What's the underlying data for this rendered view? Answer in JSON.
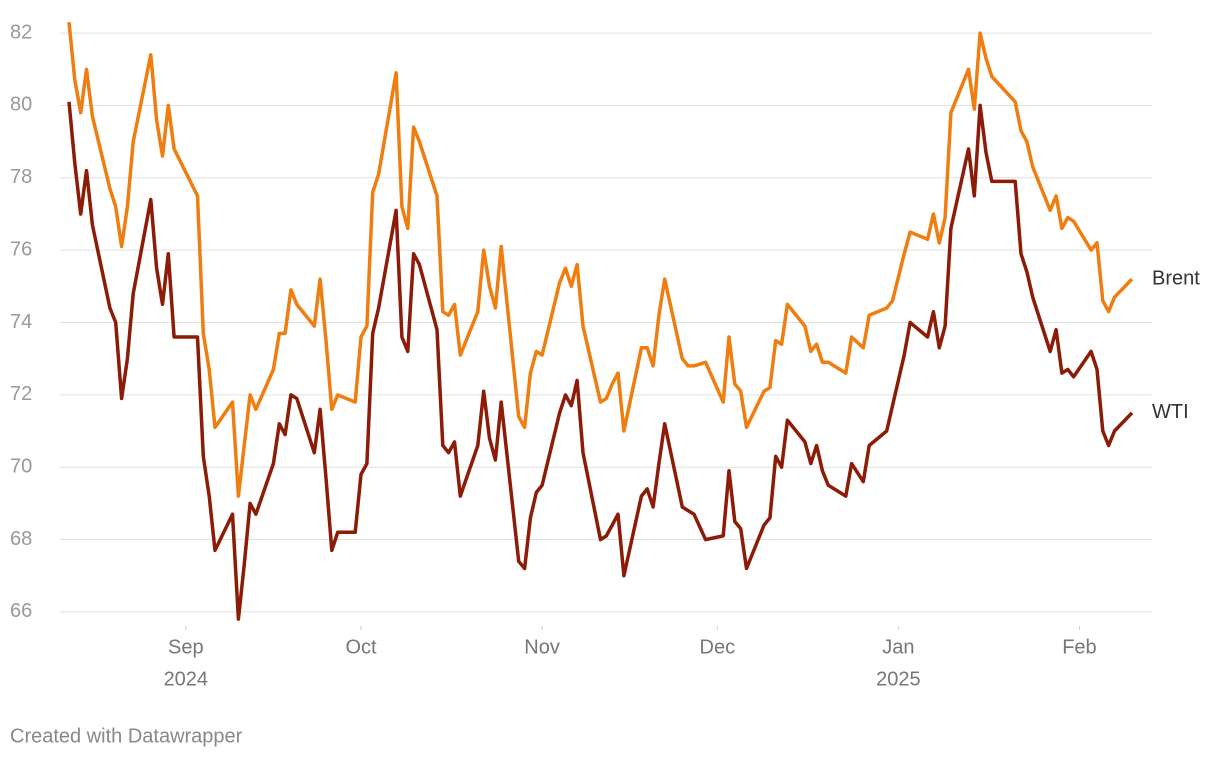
{
  "chart_data": {
    "type": "line",
    "footer": "Created with Datawrapper",
    "x": [
      "2024-08-12",
      "2024-08-13",
      "2024-08-14",
      "2024-08-15",
      "2024-08-16",
      "2024-08-19",
      "2024-08-20",
      "2024-08-21",
      "2024-08-22",
      "2024-08-23",
      "2024-08-26",
      "2024-08-27",
      "2024-08-28",
      "2024-08-29",
      "2024-08-30",
      "2024-09-03",
      "2024-09-04",
      "2024-09-05",
      "2024-09-06",
      "2024-09-09",
      "2024-09-10",
      "2024-09-11",
      "2024-09-12",
      "2024-09-13",
      "2024-09-16",
      "2024-09-17",
      "2024-09-18",
      "2024-09-19",
      "2024-09-20",
      "2024-09-23",
      "2024-09-24",
      "2024-09-25",
      "2024-09-26",
      "2024-09-27",
      "2024-09-30",
      "2024-10-01",
      "2024-10-02",
      "2024-10-03",
      "2024-10-04",
      "2024-10-07",
      "2024-10-08",
      "2024-10-09",
      "2024-10-10",
      "2024-10-11",
      "2024-10-14",
      "2024-10-15",
      "2024-10-16",
      "2024-10-17",
      "2024-10-18",
      "2024-10-21",
      "2024-10-22",
      "2024-10-23",
      "2024-10-24",
      "2024-10-25",
      "2024-10-28",
      "2024-10-29",
      "2024-10-30",
      "2024-10-31",
      "2024-11-01",
      "2024-11-04",
      "2024-11-05",
      "2024-11-06",
      "2024-11-07",
      "2024-11-08",
      "2024-11-11",
      "2024-11-12",
      "2024-11-13",
      "2024-11-14",
      "2024-11-15",
      "2024-11-18",
      "2024-11-19",
      "2024-11-20",
      "2024-11-21",
      "2024-11-22",
      "2024-11-25",
      "2024-11-26",
      "2024-11-27",
      "2024-11-29",
      "2024-12-02",
      "2024-12-03",
      "2024-12-04",
      "2024-12-05",
      "2024-12-06",
      "2024-12-09",
      "2024-12-10",
      "2024-12-11",
      "2024-12-12",
      "2024-12-13",
      "2024-12-16",
      "2024-12-17",
      "2024-12-18",
      "2024-12-19",
      "2024-12-20",
      "2024-12-23",
      "2024-12-24",
      "2024-12-26",
      "2024-12-27",
      "2024-12-30",
      "2024-12-31",
      "2025-01-02",
      "2025-01-03",
      "2025-01-06",
      "2025-01-07",
      "2025-01-08",
      "2025-01-09",
      "2025-01-10",
      "2025-01-13",
      "2025-01-14",
      "2025-01-15",
      "2025-01-16",
      "2025-01-17",
      "2025-01-21",
      "2025-01-22",
      "2025-01-23",
      "2025-01-24",
      "2025-01-27",
      "2025-01-28",
      "2025-01-29",
      "2025-01-30",
      "2025-01-31",
      "2025-02-03",
      "2025-02-04",
      "2025-02-05",
      "2025-02-06",
      "2025-02-07",
      "2025-02-10"
    ],
    "series": [
      {
        "name": "Brent",
        "color": "#ef7d0f",
        "values": [
          82.3,
          80.7,
          79.8,
          81.0,
          79.7,
          77.7,
          77.2,
          76.1,
          77.2,
          79.0,
          81.4,
          79.6,
          78.6,
          80.0,
          78.8,
          77.5,
          73.7,
          72.7,
          71.1,
          71.8,
          69.2,
          70.6,
          72.0,
          71.6,
          72.7,
          73.7,
          73.7,
          74.9,
          74.5,
          73.9,
          75.2,
          73.5,
          71.6,
          72.0,
          71.8,
          73.6,
          73.9,
          77.6,
          78.1,
          80.9,
          77.2,
          76.6,
          79.4,
          79.0,
          77.5,
          74.3,
          74.2,
          74.5,
          73.1,
          74.3,
          76.0,
          75.0,
          74.4,
          76.1,
          71.4,
          71.1,
          72.6,
          73.2,
          73.1,
          75.1,
          75.5,
          75.0,
          75.6,
          73.9,
          71.8,
          71.9,
          72.3,
          72.6,
          71.0,
          73.3,
          73.3,
          72.8,
          74.2,
          75.2,
          73.0,
          72.8,
          72.8,
          72.9,
          71.8,
          73.6,
          72.3,
          72.1,
          71.1,
          72.1,
          72.2,
          73.5,
          73.4,
          74.5,
          73.9,
          73.2,
          73.4,
          72.9,
          72.9,
          72.6,
          73.6,
          73.3,
          74.2,
          74.4,
          74.6,
          75.9,
          76.5,
          76.3,
          77.0,
          76.2,
          76.9,
          79.8,
          81.0,
          79.9,
          82.0,
          81.3,
          80.8,
          80.1,
          79.3,
          79.0,
          78.3,
          77.1,
          77.5,
          76.6,
          76.9,
          76.8,
          76.0,
          76.2,
          74.6,
          74.3,
          74.7,
          75.2
        ]
      },
      {
        "name": "WTI",
        "color": "#8c1b07",
        "values": [
          80.1,
          78.4,
          77.0,
          78.2,
          76.7,
          74.4,
          74.0,
          71.9,
          73.0,
          74.8,
          77.4,
          75.5,
          74.5,
          75.9,
          73.6,
          73.6,
          70.3,
          69.2,
          67.7,
          68.7,
          65.8,
          67.3,
          69.0,
          68.7,
          70.1,
          71.2,
          70.9,
          72.0,
          71.9,
          70.4,
          71.6,
          69.7,
          67.7,
          68.2,
          68.2,
          69.8,
          70.1,
          73.7,
          74.4,
          77.1,
          73.6,
          73.2,
          75.9,
          75.6,
          73.8,
          70.6,
          70.4,
          70.7,
          69.2,
          70.6,
          72.1,
          70.8,
          70.2,
          71.8,
          67.4,
          67.2,
          68.6,
          69.3,
          69.5,
          71.5,
          72.0,
          71.7,
          72.4,
          70.4,
          68.0,
          68.1,
          68.4,
          68.7,
          67.0,
          69.2,
          69.4,
          68.9,
          70.1,
          71.2,
          68.9,
          68.8,
          68.7,
          68.0,
          68.1,
          69.9,
          68.5,
          68.3,
          67.2,
          68.4,
          68.6,
          70.3,
          70.0,
          71.3,
          70.7,
          70.1,
          70.6,
          69.9,
          69.5,
          69.2,
          70.1,
          69.6,
          70.6,
          71.0,
          71.7,
          73.1,
          74.0,
          73.6,
          74.3,
          73.3,
          73.9,
          76.6,
          78.8,
          77.5,
          80.0,
          78.7,
          77.9,
          77.9,
          75.9,
          75.4,
          74.7,
          73.2,
          73.8,
          72.6,
          72.7,
          72.5,
          73.2,
          72.7,
          71.0,
          70.6,
          71.0,
          71.5
        ]
      }
    ],
    "xlim": [
      "2024-08-12",
      "2025-02-10"
    ],
    "xticks": [
      {
        "value": "2024-09-01",
        "label": "Sep",
        "year": "2024"
      },
      {
        "value": "2024-10-01",
        "label": "Oct"
      },
      {
        "value": "2024-11-01",
        "label": "Nov"
      },
      {
        "value": "2024-12-01",
        "label": "Dec"
      },
      {
        "value": "2025-01-01",
        "label": "Jan",
        "year": "2025"
      },
      {
        "value": "2025-02-01",
        "label": "Feb"
      }
    ],
    "ylim": [
      65.5,
      82.5
    ],
    "yticks": [
      66,
      68,
      70,
      72,
      74,
      76,
      78,
      80,
      82
    ],
    "grid": true
  }
}
